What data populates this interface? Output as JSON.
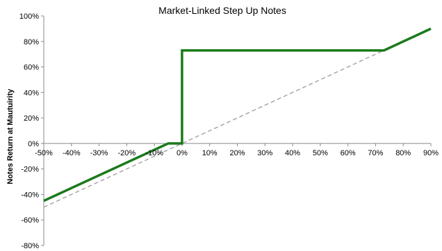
{
  "chart_data": {
    "type": "line",
    "title": "Market-Linked Step Up Notes",
    "xlabel": "",
    "ylabel": "Notes Return at Mautuirity",
    "xlim": [
      -50,
      90
    ],
    "ylim": [
      -80,
      100
    ],
    "x_ticks": [
      -50,
      -40,
      -30,
      -20,
      -10,
      0,
      10,
      20,
      30,
      40,
      50,
      60,
      70,
      80,
      90
    ],
    "y_ticks": [
      -80,
      -60,
      -40,
      -20,
      0,
      20,
      40,
      60,
      80,
      100
    ],
    "x_tick_labels": [
      "-50%",
      "-40%",
      "-30%",
      "-20%",
      "-10%",
      "0%",
      "10%",
      "20%",
      "30%",
      "40%",
      "50%",
      "60%",
      "70%",
      "80%",
      "90%"
    ],
    "y_tick_labels": [
      "-80%",
      "-60%",
      "-40%",
      "-20%",
      "0%",
      "20%",
      "40%",
      "60%",
      "80%",
      "100%"
    ],
    "grid": false,
    "legend": "none",
    "series": [
      {
        "color": "#1a7a1a",
        "style": "solid",
        "points": [
          [
            -50,
            -45
          ],
          [
            -5,
            0
          ],
          [
            0,
            0
          ],
          [
            0,
            73
          ],
          [
            73,
            73
          ],
          [
            90,
            90
          ]
        ]
      },
      {
        "color": "#a6a6a6",
        "style": "dashed",
        "points": [
          [
            -50,
            -50
          ],
          [
            90,
            90
          ]
        ]
      }
    ]
  }
}
